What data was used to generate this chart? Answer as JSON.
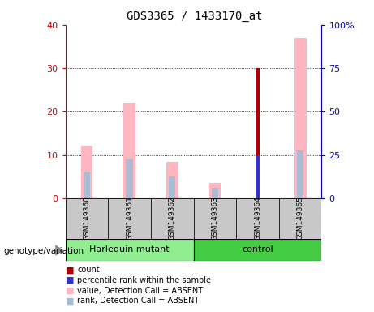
{
  "title": "GDS3365 / 1433170_at",
  "samples": [
    "GSM149360",
    "GSM149361",
    "GSM149362",
    "GSM149363",
    "GSM149364",
    "GSM149365"
  ],
  "group_labels": [
    "Harlequin mutant",
    "control"
  ],
  "ylim_left": [
    0,
    40
  ],
  "ylim_right": [
    0,
    100
  ],
  "yticks_left": [
    0,
    10,
    20,
    30,
    40
  ],
  "yticks_right": [
    0,
    25,
    50,
    75,
    100
  ],
  "yticklabels_right": [
    "0",
    "25",
    "50",
    "75",
    "100%"
  ],
  "pink_bars": [
    12,
    22,
    8.5,
    3.5,
    0,
    37
  ],
  "light_blue_bars": [
    6,
    9,
    5,
    2.5,
    0,
    11
  ],
  "dark_red_bars": [
    0,
    0,
    0,
    0,
    30,
    0
  ],
  "blue_bars": [
    0,
    0,
    0,
    0,
    10,
    0
  ],
  "pink_color": "#FFB6C1",
  "light_blue_color": "#AABBD4",
  "dark_red_color": "#AA0000",
  "blue_color": "#3333CC",
  "legend_items": [
    [
      "count",
      "#AA0000"
    ],
    [
      "percentile rank within the sample",
      "#3333CC"
    ],
    [
      "value, Detection Call = ABSENT",
      "#FFB6C1"
    ],
    [
      "rank, Detection Call = ABSENT",
      "#AABBD4"
    ]
  ],
  "genotype_label": "genotype/variation",
  "left_axis_color": "#CC0000",
  "right_axis_color": "#0000CC",
  "grid_color": "black",
  "group_color_1": "#90EE90",
  "group_color_2": "#44CC44"
}
